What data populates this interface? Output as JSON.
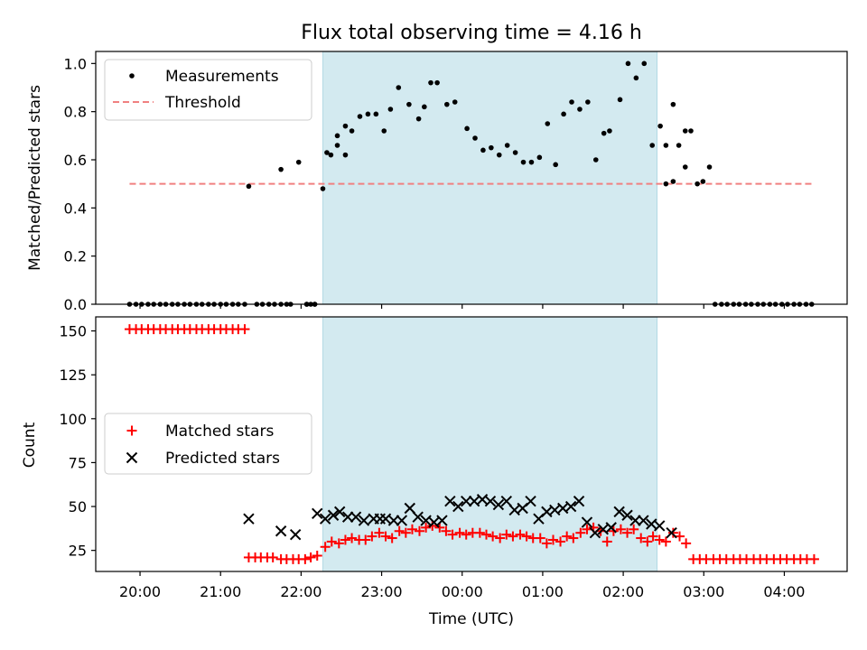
{
  "title": "Flux total observing time = 4.16 h",
  "chart_data": [
    {
      "panel": "top",
      "type": "scatter",
      "ylabel": "Matched/Predicted stars",
      "ylim": [
        0,
        1.05
      ],
      "yticks": [
        "0.0",
        "0.2",
        "0.4",
        "0.6",
        "0.8",
        "1.0"
      ],
      "ytick_values": [
        0,
        0.2,
        0.4,
        0.6,
        0.8,
        1.0
      ],
      "xlim_hours": [
        19.45,
        28.78
      ],
      "shaded_span_hours": [
        22.27,
        26.42
      ],
      "shaded_color": "#d3eaf0",
      "threshold": {
        "name": "Threshold",
        "value": 0.5,
        "x_range_hours": [
          19.87,
          28.38
        ],
        "color": "#f08080"
      },
      "legend": {
        "position": "upper-left",
        "entries": [
          "Measurements",
          "Threshold"
        ]
      },
      "series": [
        {
          "name": "Measurements",
          "color": "#000000",
          "marker": "dot",
          "x": [
            19.87,
            19.95,
            20.02,
            20.1,
            20.17,
            20.25,
            20.32,
            20.4,
            20.47,
            20.55,
            20.62,
            20.7,
            20.77,
            20.85,
            20.92,
            21.0,
            21.07,
            21.15,
            21.22,
            21.3,
            21.35,
            21.45,
            21.52,
            21.6,
            21.67,
            21.75,
            21.82,
            21.87,
            21.97,
            22.07,
            22.12,
            22.17,
            22.37,
            22.45,
            22.55,
            22.63,
            22.73,
            22.83,
            22.93,
            23.03,
            23.11,
            23.21,
            23.34,
            23.46,
            23.53,
            23.61,
            23.69,
            23.81,
            23.91,
            24.06,
            24.16,
            24.26,
            24.36,
            24.46,
            24.56,
            24.66,
            24.76,
            24.86,
            24.96,
            25.06,
            25.16,
            25.26,
            25.36,
            25.46,
            25.56,
            25.66,
            25.76,
            25.83,
            25.96,
            26.06,
            26.16,
            26.26,
            26.36,
            26.46,
            26.53,
            26.62,
            26.69,
            26.77,
            26.84,
            26.92,
            26.99,
            27.07,
            27.14,
            27.22,
            27.29,
            27.37,
            27.44,
            27.52,
            27.59,
            27.67,
            27.74,
            27.82,
            27.89,
            27.97,
            28.04,
            28.12,
            28.19,
            28.27,
            28.34
          ],
          "y": [
            0,
            0,
            0,
            0,
            0,
            0,
            0,
            0,
            0,
            0,
            0,
            0,
            0,
            0,
            0,
            0,
            0,
            0,
            0,
            0,
            0.49,
            0,
            0,
            0,
            0,
            0,
            0,
            0,
            0.59,
            0,
            0,
            0,
            0.62,
            0.7,
            0.74,
            0.72,
            0.78,
            0.79,
            0.79,
            0.72,
            0.81,
            0.9,
            0.83,
            0.77,
            0.82,
            0.92,
            0.92,
            0.83,
            0.84,
            0.73,
            0.69,
            0.64,
            0.65,
            0.62,
            0.66,
            0.63,
            0.59,
            0.59,
            0.61,
            0.75,
            0.58,
            0.79,
            0.84,
            0.81,
            0.84,
            0.6,
            0.71,
            0.72,
            0.85,
            1.0,
            0.94,
            1.0,
            0.66,
            0.74,
            0.66,
            0.83,
            0.66,
            0.72,
            0.72,
            0.5,
            0.51,
            0.57,
            0,
            0,
            0,
            0,
            0,
            0,
            0,
            0,
            0,
            0,
            0,
            0,
            0,
            0,
            0,
            0,
            0
          ]
        }
      ],
      "extra_points_hours": [
        [
          21.75,
          0.56
        ],
        [
          22.27,
          0.48
        ],
        [
          22.32,
          0.63
        ],
        [
          22.45,
          0.66
        ],
        [
          22.55,
          0.62
        ],
        [
          26.53,
          0.5
        ],
        [
          26.62,
          0.51
        ],
        [
          26.77,
          0.57
        ],
        [
          22.07,
          0.0
        ],
        [
          22.17,
          0.0
        ]
      ]
    },
    {
      "panel": "bottom",
      "type": "scatter",
      "xlabel": "Time (UTC)",
      "ylabel": "Count",
      "ylim": [
        13,
        158
      ],
      "yticks": [
        "25",
        "50",
        "75",
        "100",
        "125",
        "150"
      ],
      "ytick_values": [
        25,
        50,
        75,
        100,
        125,
        150
      ],
      "xticks": [
        "20:00",
        "21:00",
        "22:00",
        "23:00",
        "00:00",
        "01:00",
        "02:00",
        "03:00",
        "04:00"
      ],
      "xtick_values_hours": [
        20,
        21,
        22,
        23,
        24,
        25,
        26,
        27,
        28
      ],
      "xlim_hours": [
        19.45,
        28.78
      ],
      "shaded_span_hours": [
        22.27,
        26.42
      ],
      "legend": {
        "position": "center-left",
        "entries": [
          "Matched stars",
          "Predicted stars"
        ]
      },
      "series": [
        {
          "name": "Matched stars",
          "color": "#ff0000",
          "marker": "plus",
          "x": [
            19.87,
            19.95,
            20.02,
            20.1,
            20.17,
            20.25,
            20.32,
            20.4,
            20.47,
            20.55,
            20.62,
            20.7,
            20.77,
            20.85,
            20.92,
            21.0,
            21.07,
            21.15,
            21.22,
            21.3,
            21.35,
            21.43,
            21.5,
            21.58,
            21.65,
            21.75,
            21.82,
            21.9,
            21.97,
            22.05,
            22.12,
            22.2,
            22.3,
            22.38,
            22.47,
            22.55,
            22.63,
            22.72,
            22.8,
            22.88,
            22.97,
            23.05,
            23.13,
            23.22,
            23.3,
            23.38,
            23.47,
            23.55,
            23.63,
            23.72,
            23.8,
            23.88,
            23.97,
            24.05,
            24.13,
            24.22,
            24.3,
            24.38,
            24.47,
            24.55,
            24.63,
            24.72,
            24.8,
            24.88,
            24.97,
            25.05,
            25.13,
            25.22,
            25.3,
            25.38,
            25.47,
            25.55,
            25.63,
            25.72,
            25.8,
            25.88,
            25.97,
            26.05,
            26.13,
            26.22,
            26.3,
            26.37,
            26.45,
            26.53,
            26.62,
            26.7,
            26.78,
            26.87,
            26.95,
            27.03,
            27.12,
            27.2,
            27.28,
            27.37,
            27.45,
            27.53,
            27.62,
            27.7,
            27.78,
            27.87,
            27.95,
            28.03,
            28.12,
            28.2,
            28.28,
            28.37
          ],
          "y": [
            151,
            151,
            151,
            151,
            151,
            151,
            151,
            151,
            151,
            151,
            151,
            151,
            151,
            151,
            151,
            151,
            151,
            151,
            151,
            151,
            21,
            21,
            21,
            21,
            21,
            20,
            20,
            20,
            20,
            20,
            21,
            22,
            27,
            30,
            29,
            31,
            32,
            31,
            31,
            33,
            35,
            33,
            32,
            36,
            35,
            37,
            36,
            38,
            39,
            38,
            36,
            34,
            35,
            34,
            35,
            35,
            34,
            33,
            32,
            34,
            33,
            34,
            33,
            32,
            32,
            29,
            31,
            30,
            33,
            32,
            35,
            37,
            38,
            36,
            30,
            36,
            37,
            35,
            37,
            32,
            30,
            33,
            31,
            30,
            35,
            33,
            29,
            20,
            20,
            20,
            20,
            20,
            20,
            20,
            20,
            20,
            20,
            20,
            20,
            20,
            20,
            20,
            20,
            20,
            20,
            20
          ]
        },
        {
          "name": "Predicted stars",
          "color": "#000000",
          "marker": "x",
          "x": [
            21.35,
            21.75,
            21.93,
            22.2,
            22.3,
            22.4,
            22.48,
            22.58,
            22.68,
            22.78,
            22.9,
            22.98,
            23.05,
            23.15,
            23.25,
            23.35,
            23.45,
            23.55,
            23.65,
            23.75,
            23.85,
            23.95,
            24.05,
            24.15,
            24.25,
            24.35,
            24.45,
            24.55,
            24.65,
            24.75,
            24.85,
            24.95,
            25.05,
            25.15,
            25.25,
            25.35,
            25.45,
            25.55,
            25.65,
            25.75,
            25.85,
            25.95,
            26.05,
            26.15,
            26.25,
            26.35,
            26.45,
            26.6
          ],
          "y": [
            43,
            36,
            34,
            46,
            43,
            45,
            47,
            44,
            44,
            42,
            43,
            43,
            43,
            42,
            42,
            49,
            44,
            42,
            41,
            42,
            53,
            50,
            53,
            53,
            54,
            53,
            51,
            53,
            48,
            49,
            53,
            43,
            47,
            48,
            49,
            50,
            53,
            41,
            35,
            37,
            38,
            47,
            45,
            42,
            42,
            40,
            39,
            35
          ]
        }
      ]
    }
  ]
}
